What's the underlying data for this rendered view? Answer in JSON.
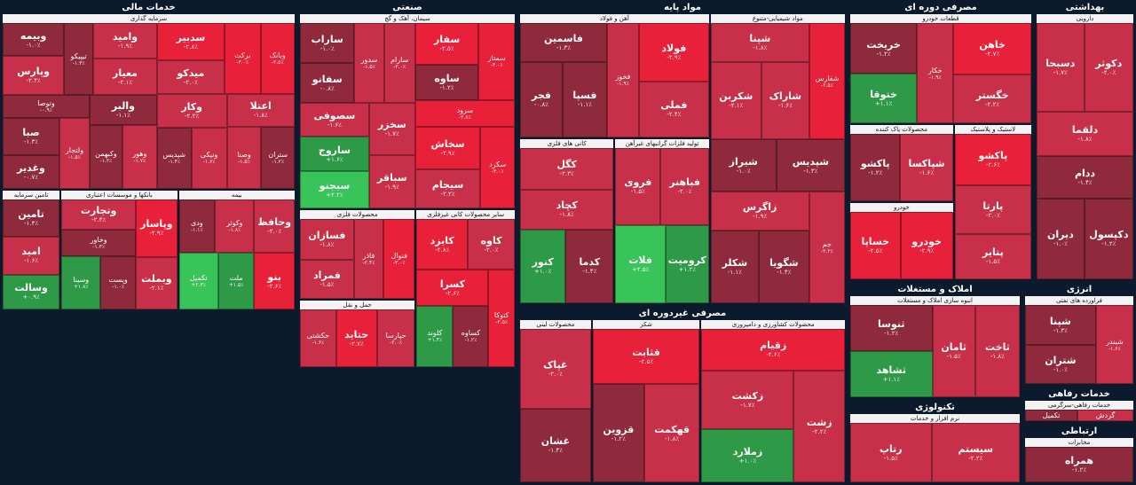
{
  "chart_data": {
    "type": "heatmap",
    "variant": "treemap",
    "colors": {
      "strong_red": "#e8203a",
      "red": "#c8304a",
      "dark_red": "#8e2a3c",
      "neutral": "#3f4a5a",
      "green": "#2e9a48",
      "strong_green": "#39c45a"
    },
    "sectors": [
      {
        "name": "خدمات مالی",
        "industries": [
          {
            "name": "سرمایه گذاری",
            "tiles": [
              {
                "sym": "وبانک",
                "pct": "-۲.۵٪",
                "v": -2.5
              },
              {
                "sym": "برکت",
                "pct": "-۳.۰٪",
                "v": -3.0
              },
              {
                "sym": "سدبیر",
                "pct": "-۲.۸٪",
                "v": -2.8
              },
              {
                "sym": "میدکو",
                "pct": "-۲.۰٪",
                "v": -2.0
              },
              {
                "sym": "اعتلا",
                "pct": "-۱.۸٪",
                "v": -1.8
              },
              {
                "sym": "ستران",
                "pct": "-۱.۲٪",
                "v": -1.2
              },
              {
                "sym": "وصنا",
                "pct": "-۱.۵٪",
                "v": -1.5
              },
              {
                "sym": "وکار",
                "pct": "-۲.۲٪",
                "v": -2.2
              },
              {
                "sym": "ونیکی",
                "pct": "-۱.۶٪",
                "v": -1.6
              },
              {
                "sym": "شپدیس",
                "pct": "-۱.۴٪",
                "v": -1.4
              },
              {
                "sym": "وامید",
                "pct": "-۱.۹٪",
                "v": -1.9
              },
              {
                "sym": "معیار",
                "pct": "-۲.۱٪",
                "v": -2.1
              },
              {
                "sym": "تیپیکو",
                "pct": "-۱.۳٪",
                "v": -1.3
              },
              {
                "sym": "وبیمه",
                "pct": "-۱.۰٪",
                "v": -1.0
              },
              {
                "sym": "وپارس",
                "pct": "-۲.۴٪",
                "v": -2.4
              },
              {
                "sym": "والبر",
                "pct": "-۱.۱٪",
                "v": -1.1
              },
              {
                "sym": "وهور",
                "pct": "-۱.۷٪",
                "v": -1.7
              },
              {
                "sym": "وکبهمن",
                "pct": "-۱.۲٪",
                "v": -1.2
              },
              {
                "sym": "وتوصا",
                "pct": "-۰.۹٪",
                "v": -0.9
              },
              {
                "sym": "ولتجار",
                "pct": "-۱.۵٪",
                "v": -1.5
              },
              {
                "sym": "صبا",
                "pct": "-۱.۳٪",
                "v": -1.3
              },
              {
                "sym": "وغدیر",
                "pct": "-۰.۷٪",
                "v": -0.7
              }
            ]
          },
          {
            "name": "بیمه",
            "tiles": [
              {
                "sym": "وحافظ",
                "pct": "-۲.۰٪",
                "v": -2.0
              },
              {
                "sym": "بنو",
                "pct": "-۲.۶٪",
                "v": -2.6
              },
              {
                "sym": "وکوثر",
                "pct": "-۱.۸٪",
                "v": -1.8
              },
              {
                "sym": "ودی",
                "pct": "-۱.۱٪",
                "v": -1.1
              },
              {
                "sym": "ملت",
                "pct": "+۱.۵٪",
                "v": 1.5
              },
              {
                "sym": "تکمیل",
                "pct": "+۲.۳٪",
                "v": 2.3
              }
            ]
          },
          {
            "name": "بانکها و موسسات اعتباری",
            "tiles": [
              {
                "sym": "وپاسار",
                "pct": "-۲.۹٪",
                "v": -2.9
              },
              {
                "sym": "وبملت",
                "pct": "-۲.۱٪",
                "v": -2.1
              },
              {
                "sym": "وتجارت",
                "pct": "-۲.۴٪",
                "v": -2.4
              },
              {
                "sym": "وخاور",
                "pct": "-۱.۳٪",
                "v": -1.3
              },
              {
                "sym": "وپست",
                "pct": "-۱.۰٪",
                "v": -1.0
              },
              {
                "sym": "وسینا",
                "pct": "+۱.۸٪",
                "v": 1.8
              }
            ]
          },
          {
            "name": "تامین سرمایه",
            "tiles": [
              {
                "sym": "تامین",
                "pct": "-۱.۴٪",
                "v": -1.4
              },
              {
                "sym": "امید",
                "pct": "-۱.۶٪",
                "v": -1.6
              },
              {
                "sym": "وسالت",
                "pct": "+۰.۹٪",
                "v": 0.9
              }
            ]
          }
        ]
      },
      {
        "name": "صنعتی",
        "industries": [
          {
            "name": "سیمان، آهک و گچ",
            "tiles": [
              {
                "sym": "سمتاز",
                "pct": "-۳.۰٪",
                "v": -3.0
              },
              {
                "sym": "سفار",
                "pct": "-۲.۵٪",
                "v": -2.5
              },
              {
                "sym": "ساوه",
                "pct": "-۱.۲٪",
                "v": -1.2
              },
              {
                "sym": "سرود",
                "pct": "-۲.۸٪",
                "v": -2.8
              },
              {
                "sym": "سکرد",
                "pct": "-۳.۰٪",
                "v": -3.0
              },
              {
                "sym": "سخاش",
                "pct": "-۲.۹٪",
                "v": -2.9
              },
              {
                "sym": "سیجام",
                "pct": "-۲.۲٪",
                "v": -2.2
              },
              {
                "sym": "سارام",
                "pct": "-۲.۰٪",
                "v": -2.0
              },
              {
                "sym": "سدور",
                "pct": "-۱.۵٪",
                "v": -1.5
              },
              {
                "sym": "ساراب",
                "pct": "-۱.۰٪",
                "v": -1.0
              },
              {
                "sym": "سفانو",
                "pct": "-۰.۸٪",
                "v": -0.8
              },
              {
                "sym": "سخزر",
                "pct": "-۱.۷٪",
                "v": -1.7
              },
              {
                "sym": "سباقر",
                "pct": "-۱.۹٪",
                "v": -1.9
              },
              {
                "sym": "سصوفی",
                "pct": "-۱.۶٪",
                "v": -1.6
              },
              {
                "sym": "ساروج",
                "pct": "+۱.۶٪",
                "v": 1.6
              },
              {
                "sym": "سبجنو",
                "pct": "+۲.۲٪",
                "v": 2.2
              }
            ]
          },
          {
            "name": "سایر محصولات کانی غیرفلزی",
            "tiles": [
              {
                "sym": "کاوه",
                "pct": "-۲.۰٪",
                "v": -2.0
              },
              {
                "sym": "کایزد",
                "pct": "-۲.۸٪",
                "v": -2.8
              },
              {
                "sym": "کتوکا",
                "pct": "-۲.۵٪",
                "v": -2.5
              },
              {
                "sym": "کسرا",
                "pct": "-۲.۶٪",
                "v": -2.6
              },
              {
                "sym": "کساوه",
                "pct": "-۱.۲٪",
                "v": -1.2
              },
              {
                "sym": "کلوند",
                "pct": "+۱.۴٪",
                "v": 1.4
              }
            ]
          },
          {
            "name": "محصولات فلزی",
            "tiles": [
              {
                "sym": "فنوال",
                "pct": "-۳.۰٪",
                "v": -3.0
              },
              {
                "sym": "فاذر",
                "pct": "-۲.۴٪",
                "v": -2.4
              },
              {
                "sym": "فسازان",
                "pct": "-۱.۸٪",
                "v": -1.8
              },
              {
                "sym": "فمراد",
                "pct": "-۱.۵٪",
                "v": -1.5
              }
            ]
          },
          {
            "name": "حمل و نقل",
            "tiles": [
              {
                "sym": "حپارسا",
                "pct": "-۲.۰٪",
                "v": -2.0
              },
              {
                "sym": "حتاید",
                "pct": "-۲.۷٪",
                "v": -2.7
              },
              {
                "sym": "حکشتی",
                "pct": "-۱.۶٪",
                "v": -1.6
              }
            ]
          }
        ]
      },
      {
        "name": "مواد پایه",
        "industries": [
          {
            "name": "مواد شیمیایی-متنوع",
            "tiles": [
              {
                "sym": "شفارس",
                "pct": "-۲.۵٪",
                "v": -2.5
              },
              {
                "sym": "شپنا",
                "pct": "-۱.۸٪",
                "v": -1.8
              },
              {
                "sym": "شاراک",
                "pct": "-۱.۶٪",
                "v": -1.6
              },
              {
                "sym": "شکربن",
                "pct": "-۲.۱٪",
                "v": -2.1
              },
              {
                "sym": "شپدیس",
                "pct": "-۱.۳٪",
                "v": -1.3
              },
              {
                "sym": "شیراز",
                "pct": "-۱.۰٪",
                "v": -1.0
              },
              {
                "sym": "جم",
                "pct": "-۲.۲٪",
                "v": -2.2
              },
              {
                "sym": "زاگرس",
                "pct": "-۱.۹٪",
                "v": -1.9
              },
              {
                "sym": "شگویا",
                "pct": "-۱.۴٪",
                "v": -1.4
              },
              {
                "sym": "شکلر",
                "pct": "-۱.۱٪",
                "v": -1.1
              }
            ]
          },
          {
            "name": "آهن و فولاد",
            "tiles": [
              {
                "sym": "فولاد",
                "pct": "-۲.۹٪",
                "v": -2.9
              },
              {
                "sym": "فملی",
                "pct": "-۲.۴٪",
                "v": -2.4
              },
              {
                "sym": "فخوز",
                "pct": "-۱.۹٪",
                "v": -1.9
              },
              {
                "sym": "فاسمین",
                "pct": "-۱.۳٪",
                "v": -1.3
              },
              {
                "sym": "فسپا",
                "pct": "-۱.۱٪",
                "v": -1.1
              },
              {
                "sym": "فجر",
                "pct": "-۰.۸٪",
                "v": -0.8
              }
            ]
          },
          {
            "name": "تولید فلزات گرانبهای غیرآهن",
            "tiles": [
              {
                "sym": "فباهنر",
                "pct": "-۲.۰٪",
                "v": -2.0
              },
              {
                "sym": "فروی",
                "pct": "-۱.۵٪",
                "v": -1.5
              },
              {
                "sym": "کرومیت",
                "pct": "+۱.۲٪",
                "v": 1.2
              },
              {
                "sym": "فلات",
                "pct": "+۲.۵٪",
                "v": 2.5
              }
            ]
          },
          {
            "name": "کانی های فلزی",
            "tiles": [
              {
                "sym": "کگل",
                "pct": "-۲.۳٪",
                "v": -2.3
              },
              {
                "sym": "کچاد",
                "pct": "-۱.۸٪",
                "v": -1.8
              },
              {
                "sym": "کدما",
                "pct": "-۱.۴٪",
                "v": -1.4
              },
              {
                "sym": "کنور",
                "pct": "+۱.۰٪",
                "v": 1.0
              }
            ]
          }
        ]
      },
      {
        "name": "مصرفی دوره ای",
        "industries": [
          {
            "name": "قطعات خودرو",
            "tiles": [
              {
                "sym": "خاهن",
                "pct": "-۲.۷٪",
                "v": -2.7
              },
              {
                "sym": "خگستر",
                "pct": "-۲.۲٪",
                "v": -2.2
              },
              {
                "sym": "خکار",
                "pct": "-۱.۹٪",
                "v": -1.9
              },
              {
                "sym": "خریخت",
                "pct": "-۱.۲٪",
                "v": -1.2
              },
              {
                "sym": "ختوقا",
                "pct": "+۱.۱٪",
                "v": 1.1
              }
            ]
          },
          {
            "name": "لاستیک و پلاستیک",
            "tiles": [
              {
                "sym": "پاکشو",
                "pct": "-۲.۶٪",
                "v": -2.6
              },
              {
                "sym": "پارتا",
                "pct": "-۲.۰٪",
                "v": -2.0
              },
              {
                "sym": "پتایر",
                "pct": "-۱.۵٪",
                "v": -1.5
              }
            ]
          },
          {
            "name": "محصولات پاک کننده",
            "tiles": [
              {
                "sym": "شپاکسا",
                "pct": "-۱.۶٪",
                "v": -1.6
              },
              {
                "sym": "پاکشو",
                "pct": "-۱.۲٪",
                "v": -1.2
              }
            ]
          },
          {
            "name": "خودرو",
            "tiles": [
              {
                "sym": "خودرو",
                "pct": "-۲.۹٪",
                "v": -2.9
              },
              {
                "sym": "خساپا",
                "pct": "-۲.۵٪",
                "v": -2.5
              }
            ]
          }
        ]
      },
      {
        "name": "بهداشتی",
        "industries": [
          {
            "name": "دارویی",
            "tiles": [
              {
                "sym": "دکوثر",
                "pct": "-۲.۰٪",
                "v": -2.0
              },
              {
                "sym": "دسبحا",
                "pct": "-۱.۷٪",
                "v": -1.7
              },
              {
                "sym": "دلقما",
                "pct": "-۱.۸٪",
                "v": -1.8
              },
              {
                "sym": "ددام",
                "pct": "-۱.۴٪",
                "v": -1.4
              },
              {
                "sym": "دکپسول",
                "pct": "-۱.۲٪",
                "v": -1.2
              },
              {
                "sym": "دیران",
                "pct": "-۱.۰٪",
                "v": -1.0
              }
            ]
          }
        ]
      },
      {
        "name": "املاک و مستغلات",
        "industries": [
          {
            "name": "انبوه سازی املاک و مستغلات",
            "tiles": [
              {
                "sym": "ثاخت",
                "pct": "-۱.۸٪",
                "v": -1.8
              },
              {
                "sym": "ثامان",
                "pct": "-۱.۵٪",
                "v": -1.5
              },
              {
                "sym": "ثنوسا",
                "pct": "-۱.۲٪",
                "v": -1.2
              },
              {
                "sym": "ثشاهد",
                "pct": "+۱.۱٪",
                "v": 1.1
              }
            ]
          }
        ]
      },
      {
        "name": "انرژی",
        "industries": [
          {
            "name": "فراورده های نفتی",
            "tiles": [
              {
                "sym": "شبندر",
                "pct": "-۱.۶٪",
                "v": -1.6
              },
              {
                "sym": "شپنا",
                "pct": "-۱.۳٪",
                "v": -1.3
              },
              {
                "sym": "شتران",
                "pct": "-۱.۰٪",
                "v": -1.0
              }
            ]
          }
        ]
      },
      {
        "name": "مصرفی غیردوره ای",
        "industries": [
          {
            "name": "محصولات کشاورزی و دامپروری",
            "tiles": [
              {
                "sym": "زقیام",
                "pct": "-۲.۶٪",
                "v": -2.6
              },
              {
                "sym": "زشت",
                "pct": "-۲.۲٪",
                "v": -2.2
              },
              {
                "sym": "زکشت",
                "pct": "-۱.۷٪",
                "v": -1.7
              },
              {
                "sym": "زملارد",
                "pct": "+۱.۰٪",
                "v": 1.0
              }
            ]
          },
          {
            "name": "شکر",
            "tiles": [
              {
                "sym": "قثابت",
                "pct": "-۲.۵٪",
                "v": -2.5
              },
              {
                "sym": "قهکمت",
                "pct": "-۱.۸٪",
                "v": -1.8
              },
              {
                "sym": "قزوین",
                "pct": "-۱.۲٪",
                "v": -1.2
              }
            ]
          },
          {
            "name": "محصولات لبنی",
            "tiles": [
              {
                "sym": "غپاک",
                "pct": "-۲.۰٪",
                "v": -2.0
              },
              {
                "sym": "غشان",
                "pct": "-۱.۴٪",
                "v": -1.4
              }
            ]
          }
        ]
      },
      {
        "name": "تکنولوژی",
        "industries": [
          {
            "name": "نرم افزار و خدمات",
            "tiles": [
              {
                "sym": "سیستم",
                "pct": "-۲.۲٪",
                "v": -2.2
              },
              {
                "sym": "رتاپ",
                "pct": "-۱.۵٪",
                "v": -1.5
              }
            ]
          }
        ]
      },
      {
        "name": "خدمات رفاهی",
        "industries": [
          {
            "name": "خدمات رفاهی-سرگرمی",
            "tiles": [
              {
                "sym": "گردش",
                "pct": "-۱.۵٪",
                "v": -1.5
              },
              {
                "sym": "تکمیل",
                "pct": "-۱.۰٪",
                "v": -1.0
              }
            ]
          }
        ]
      },
      {
        "name": "ارتباطی",
        "industries": [
          {
            "name": "مخابرات",
            "tiles": [
              {
                "sym": "همراه",
                "pct": "-۱.۲٪",
                "v": -1.2
              }
            ]
          }
        ]
      }
    ]
  }
}
